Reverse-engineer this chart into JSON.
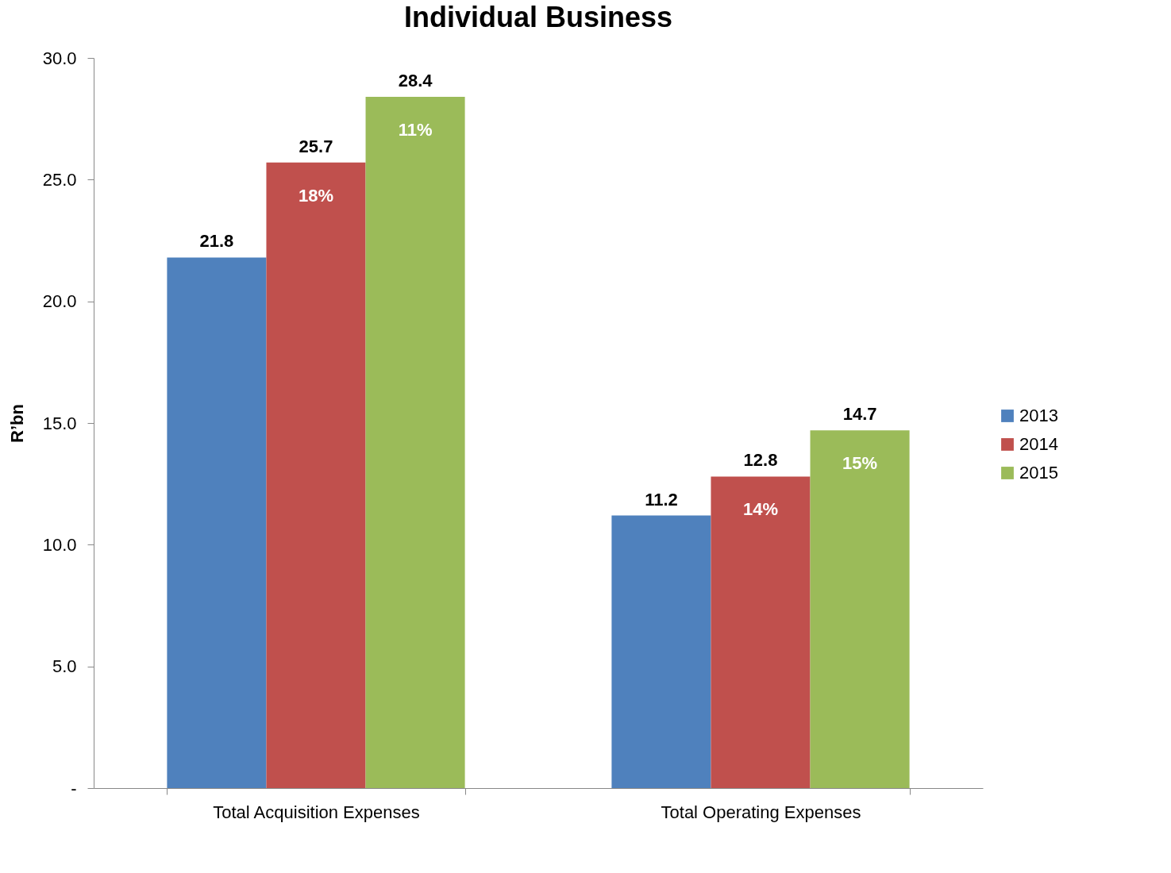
{
  "chart_data": {
    "type": "bar",
    "title": "Individual Business",
    "ylabel": "R’bn",
    "categories": [
      "Total Acquisition Expenses",
      "Total Operating Expenses"
    ],
    "series": [
      {
        "name": "2013",
        "color": "#4f81bd",
        "values": [
          21.8,
          11.2
        ]
      },
      {
        "name": "2014",
        "color": "#c0504d",
        "values": [
          25.7,
          12.8
        ]
      },
      {
        "name": "2015",
        "color": "#9bbb59",
        "values": [
          28.4,
          14.7
        ]
      }
    ],
    "ylim": [
      0,
      30
    ],
    "yticks": [
      {
        "value": 0,
        "label": "-"
      },
      {
        "value": 5,
        "label": "5.0"
      },
      {
        "value": 10,
        "label": "10.0"
      },
      {
        "value": 15,
        "label": "15.0"
      },
      {
        "value": 20,
        "label": "20.0"
      },
      {
        "value": 25,
        "label": "25.0"
      },
      {
        "value": 30,
        "label": "30.0"
      }
    ],
    "data_labels": true,
    "annotations": [
      "18%",
      "14%",
      "11%",
      "15%"
    ],
    "grid": false,
    "legend": "right"
  }
}
